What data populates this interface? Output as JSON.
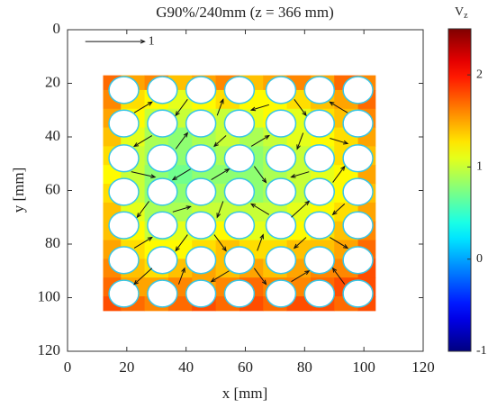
{
  "chart_data": {
    "type": "heatmap",
    "title": "G90%/240mm (z = 366 mm)",
    "xlabel": "x [mm]",
    "ylabel": "y [mm]",
    "xlim": [
      0,
      120
    ],
    "ylim": [
      0,
      120
    ],
    "y_reversed": true,
    "xticks": [
      0,
      20,
      40,
      60,
      80,
      100,
      120
    ],
    "yticks": [
      0,
      20,
      40,
      60,
      80,
      100,
      120
    ],
    "colormap": "jet",
    "colorbar": {
      "label": "V",
      "label_sub": "z",
      "lim": [
        -1,
        2.5
      ],
      "ticks": [
        -1,
        0,
        1,
        2
      ]
    },
    "sample": {
      "x": [
        12,
        104
      ],
      "y": [
        17,
        105
      ]
    },
    "x": [
      14,
      22,
      30,
      38,
      46,
      54,
      62,
      70,
      78,
      86,
      94,
      102
    ],
    "y": [
      19,
      26,
      33,
      40,
      47,
      54,
      61,
      68,
      75,
      82,
      89,
      96,
      103
    ],
    "values": [
      [
        1.7,
        1.5,
        1.6,
        1.4,
        1.5,
        1.6,
        1.4,
        1.5,
        1.6,
        1.5,
        1.7,
        1.6
      ],
      [
        1.6,
        1.3,
        1.2,
        1.1,
        1.2,
        1.3,
        1.2,
        1.2,
        1.3,
        1.4,
        1.5,
        1.7
      ],
      [
        1.5,
        1.2,
        1.0,
        1.0,
        1.1,
        1.0,
        1.1,
        1.2,
        1.1,
        1.3,
        1.4,
        1.6
      ],
      [
        1.4,
        1.1,
        0.9,
        0.8,
        0.9,
        1.0,
        0.9,
        1.0,
        1.1,
        1.2,
        1.3,
        1.5
      ],
      [
        1.3,
        1.0,
        0.9,
        0.8,
        0.8,
        0.9,
        0.8,
        0.9,
        1.0,
        1.1,
        1.3,
        1.4
      ],
      [
        1.2,
        1.0,
        0.8,
        0.7,
        0.8,
        0.8,
        0.8,
        0.9,
        1.0,
        1.1,
        1.2,
        1.5
      ],
      [
        1.3,
        1.0,
        0.8,
        0.8,
        0.9,
        0.9,
        0.8,
        0.9,
        1.0,
        1.1,
        1.2,
        1.4
      ],
      [
        1.4,
        1.1,
        0.9,
        0.9,
        1.0,
        1.0,
        1.0,
        1.0,
        1.1,
        1.2,
        1.3,
        1.5
      ],
      [
        1.4,
        1.2,
        1.0,
        1.1,
        1.1,
        1.2,
        1.1,
        1.1,
        1.2,
        1.3,
        1.4,
        1.6
      ],
      [
        1.5,
        1.3,
        1.2,
        1.2,
        1.3,
        1.4,
        1.3,
        1.3,
        1.4,
        1.4,
        1.5,
        1.7
      ],
      [
        1.6,
        1.4,
        1.3,
        1.4,
        1.5,
        1.4,
        1.5,
        1.4,
        1.5,
        1.6,
        1.6,
        1.8
      ],
      [
        1.7,
        1.5,
        1.5,
        1.6,
        1.5,
        1.6,
        1.7,
        1.6,
        1.6,
        1.7,
        1.8,
        1.8
      ],
      [
        1.8,
        1.7,
        1.6,
        1.7,
        1.8,
        1.7,
        1.8,
        1.7,
        1.8,
        1.8,
        1.7,
        1.8
      ]
    ],
    "holes": {
      "x": [
        19,
        32,
        45,
        58,
        72,
        85,
        98
      ],
      "y": [
        22.5,
        35,
        48,
        60.5,
        73,
        86,
        98.5
      ],
      "r": 5
    },
    "arrows": {
      "x": [
        25.5,
        38.5,
        51.5,
        65,
        78.5,
        91.5
      ],
      "y": [
        29,
        41.5,
        54,
        67,
        79.5,
        92
      ],
      "u": [
        [
          0.3,
          -0.2,
          0.1,
          -0.3,
          0.2,
          -0.3
        ],
        [
          -0.3,
          0.2,
          -0.2,
          0.3,
          -0.1,
          0.3
        ],
        [
          0.4,
          -0.3,
          0.3,
          0.2,
          -0.3,
          0.2
        ],
        [
          -0.2,
          0.3,
          -0.1,
          -0.3,
          0.3,
          -0.2
        ],
        [
          0.3,
          -0.2,
          0.2,
          0.1,
          -0.2,
          0.3
        ],
        [
          -0.3,
          0.1,
          -0.3,
          0.2,
          0.3,
          -0.2
        ]
      ],
      "v": [
        [
          -0.2,
          0.3,
          -0.3,
          0.1,
          0.3,
          -0.2
        ],
        [
          0.2,
          -0.3,
          0.2,
          -0.2,
          0.3,
          0.1
        ],
        [
          0.1,
          0.2,
          -0.2,
          0.3,
          0.1,
          -0.3
        ],
        [
          0.3,
          -0.1,
          0.3,
          -0.2,
          -0.3,
          0.2
        ],
        [
          -0.2,
          0.3,
          0.3,
          -0.3,
          0.2,
          0.2
        ],
        [
          0.3,
          -0.3,
          0.2,
          0.3,
          -0.2,
          -0.3
        ]
      ]
    },
    "reference_arrow": {
      "x": 6,
      "y": 4.4,
      "u": 1,
      "label": "1"
    },
    "arrow_scale": 20
  }
}
